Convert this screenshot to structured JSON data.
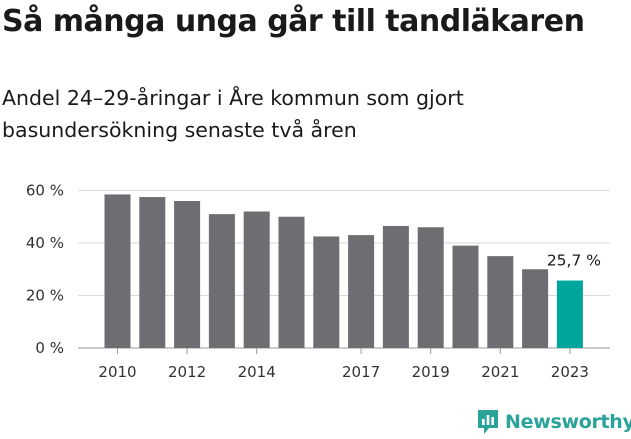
{
  "header": {
    "title": "Så många unga går till tandläkaren",
    "subtitle": "Andel 24–29-åringar i Åre kommun som gjort basundersökning senaste två åren"
  },
  "chart_data": {
    "type": "bar",
    "categories": [
      "2010",
      "2011",
      "2012",
      "2013",
      "2014",
      "2015",
      "2016",
      "2017",
      "2018",
      "2019",
      "2020",
      "2021",
      "2022",
      "2023"
    ],
    "values": [
      58.5,
      57.5,
      56,
      51,
      52,
      50,
      42.5,
      43,
      46.5,
      46,
      39,
      35,
      30,
      25.7
    ],
    "x_tick_labels": [
      "2010",
      "2012",
      "2014",
      "2017",
      "2019",
      "2021",
      "2023"
    ],
    "y_ticks": [
      0,
      20,
      40,
      60
    ],
    "y_tick_labels": [
      "0 %",
      "20 %",
      "40 %",
      "60 %"
    ],
    "ylim": [
      0,
      65
    ],
    "highlight": {
      "category": "2023",
      "label": "25,7 %"
    },
    "grid": true,
    "colors": {
      "bar": "#6e6d72",
      "highlight": "#00a69c",
      "grid": "#d9d9d9"
    }
  },
  "brand": {
    "name": "Newsworthy",
    "color": "#2aa39a",
    "icon": "newsworthy-logo-icon"
  }
}
